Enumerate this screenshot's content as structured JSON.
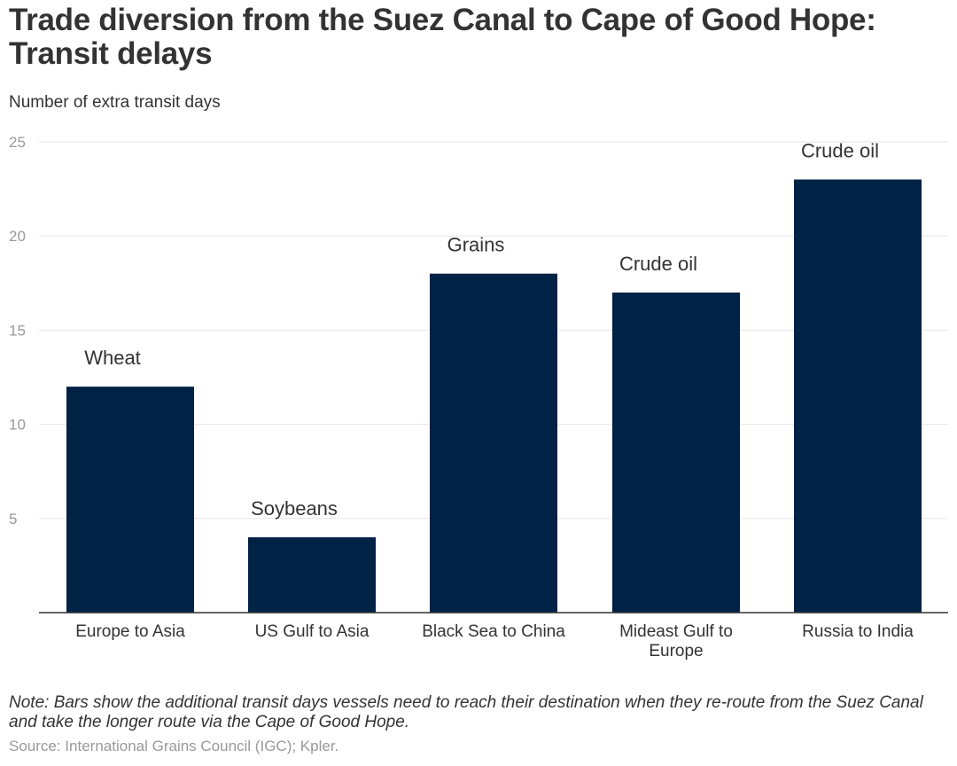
{
  "header": {
    "title": "Trade diversion from the Suez Canal to Cape of Good Hope: Transit delays",
    "subtitle": "Number of extra transit days"
  },
  "footer": {
    "note": "Note: Bars show the additional transit days vessels need to reach their destination when they re-route from the Suez Canal and take the longer route via the Cape of Good Hope.",
    "source": "Source: International Grains Council (IGC); Kpler."
  },
  "colors": {
    "bar": "#002244",
    "grid": "#e6e6e6",
    "axis": "#333333"
  },
  "chart_data": {
    "type": "bar",
    "title": "Trade diversion from the Suez Canal to Cape of Good Hope: Transit delays",
    "ylabel": "Number of extra transit days",
    "xlabel": "",
    "categories": [
      [
        "Europe to Asia"
      ],
      [
        "US Gulf to Asia"
      ],
      [
        "Black Sea to China"
      ],
      [
        "Mideast Gulf to",
        "Europe"
      ],
      [
        "Russia to India"
      ]
    ],
    "values": [
      12,
      4,
      18,
      17,
      23
    ],
    "labels": [
      "Wheat",
      "Soybeans",
      "Grains",
      "Crude oil",
      "Crude oil"
    ],
    "yticks": [
      "5",
      "10",
      "15",
      "20",
      "25"
    ],
    "ylim": [
      0,
      25
    ],
    "grid": true
  }
}
